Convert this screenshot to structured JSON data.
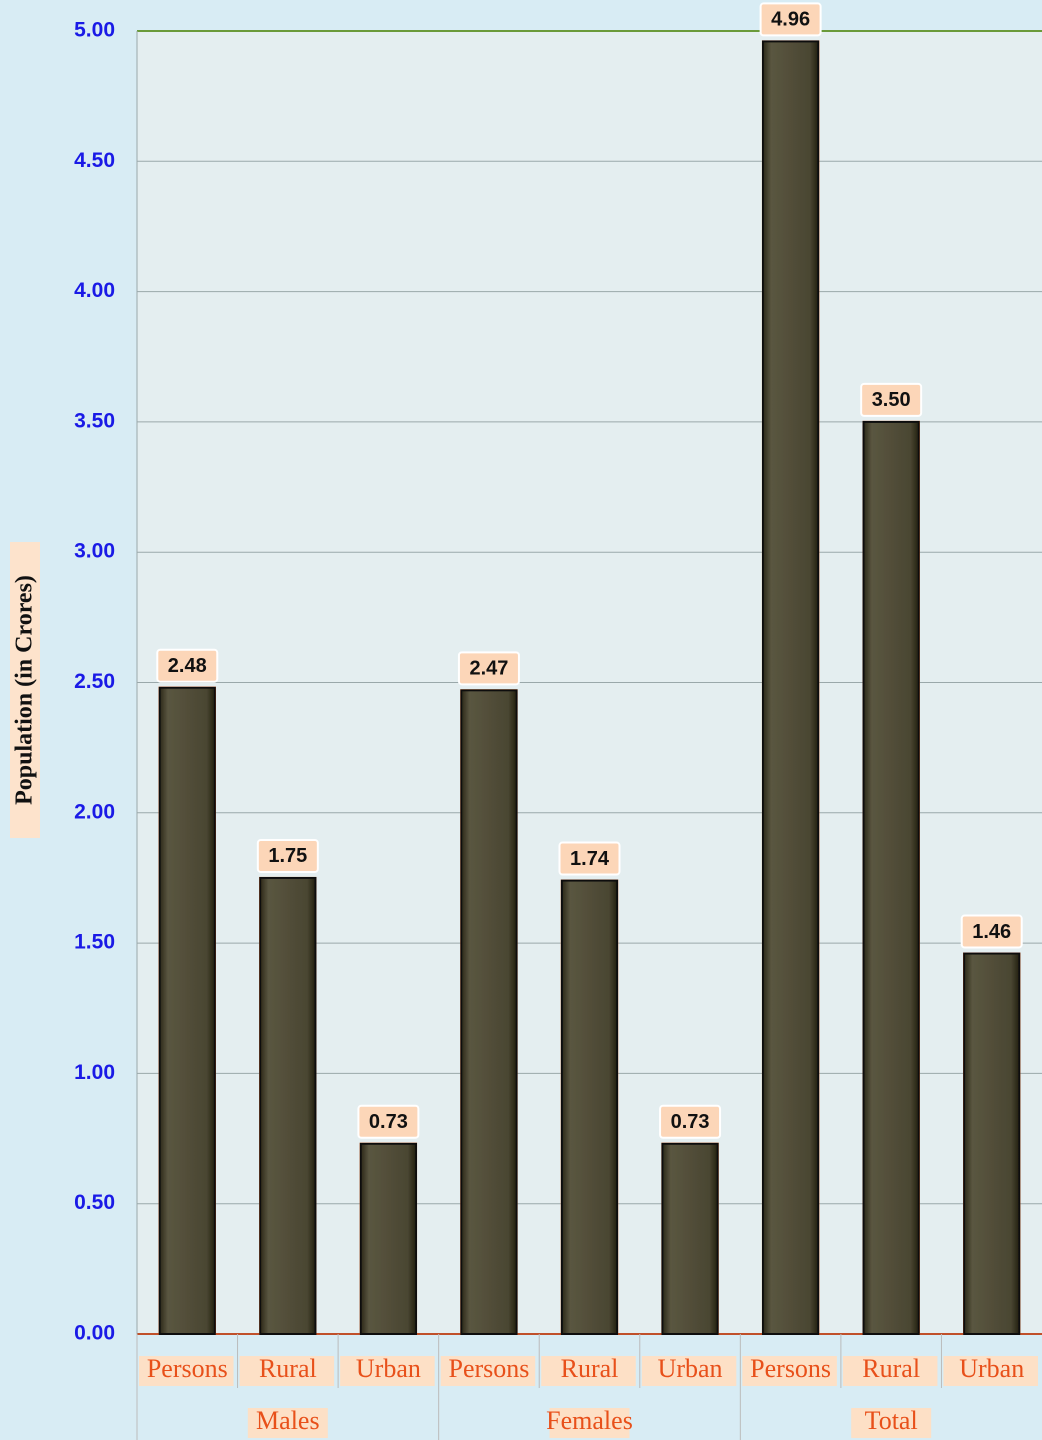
{
  "chart_data": {
    "type": "bar",
    "y_label": "Population (in Crores)",
    "categories": [
      "Persons",
      "Rural",
      "Urban",
      "Persons",
      "Rural",
      "Urban",
      "Persons",
      "Rural",
      "Urban"
    ],
    "groups": [
      "Males",
      "Females",
      "Total"
    ],
    "values": [
      2.48,
      1.75,
      0.73,
      2.47,
      1.74,
      0.73,
      4.96,
      3.5,
      1.46
    ],
    "value_labels": [
      "2.48",
      "1.75",
      "0.73",
      "2.47",
      "1.74",
      "0.73",
      "4.96",
      "3.50",
      "1.46"
    ],
    "color": "#4a4632",
    "ylim": [
      0,
      5
    ],
    "yticks": [
      {
        "value": 0,
        "label": "0.00"
      },
      {
        "value": 0.5,
        "label": "0.50"
      },
      {
        "value": 1,
        "label": "1.00"
      },
      {
        "value": 1.5,
        "label": "1.50"
      },
      {
        "value": 2,
        "label": "2.00"
      },
      {
        "value": 2.5,
        "label": "2.50"
      },
      {
        "value": 3,
        "label": "3.00"
      },
      {
        "value": 3.5,
        "label": "3.50"
      },
      {
        "value": 4,
        "label": "4.00"
      },
      {
        "value": 4.5,
        "label": "4.50"
      },
      {
        "value": 5,
        "label": "5.00"
      }
    ],
    "grid": true
  }
}
